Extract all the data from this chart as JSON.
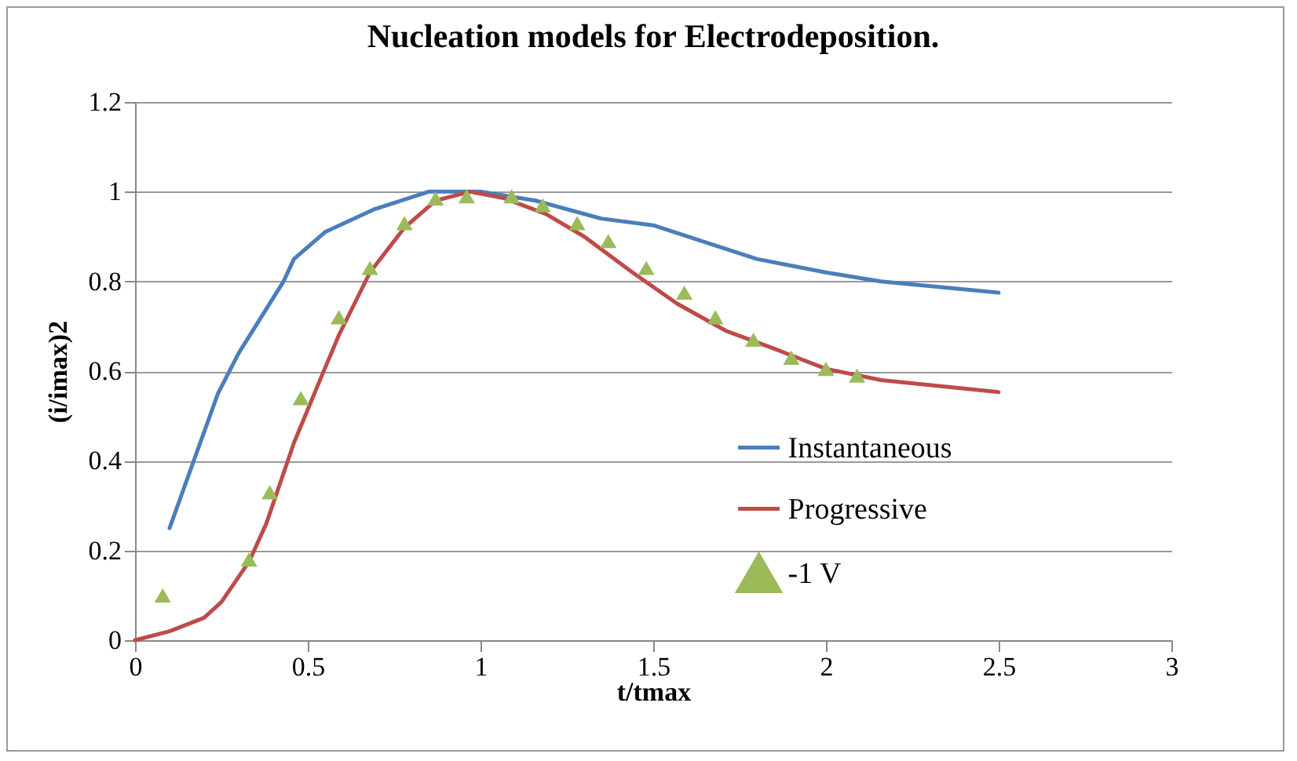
{
  "chart_data": {
    "type": "line",
    "title": "Nucleation models for Electrodeposition.",
    "xlabel": "t/tmax",
    "ylabel": "(i/imax)2",
    "xlim": [
      0,
      3
    ],
    "xticks": [
      0,
      0.5,
      1,
      1.5,
      2,
      2.5,
      3
    ],
    "ylim": [
      0,
      1.2
    ],
    "yticks": [
      0,
      0.2,
      0.4,
      0.6,
      0.8,
      1,
      1.2
    ],
    "grid": "y",
    "legend": "bottom right",
    "series": [
      {
        "name": "Instantaneous",
        "color": "#4a7ebb",
        "marker": "none",
        "x": [
          0.1,
          0.24,
          0.3,
          0.43,
          0.46,
          0.55,
          0.69,
          0.85,
          1.0,
          1.16,
          1.35,
          1.5,
          1.8,
          2.0,
          2.16,
          2.5
        ],
        "values": [
          0.25,
          0.55,
          0.64,
          0.8,
          0.85,
          0.91,
          0.96,
          1.0,
          1.0,
          0.98,
          0.94,
          0.925,
          0.85,
          0.82,
          0.8,
          0.775
        ]
      },
      {
        "name": "Progressive",
        "color": "#be4b48",
        "marker": "none",
        "x": [
          0,
          0.1,
          0.2,
          0.25,
          0.33,
          0.38,
          0.46,
          0.53,
          0.59,
          0.68,
          0.78,
          0.87,
          0.97,
          1.07,
          1.19,
          1.3,
          1.44,
          1.57,
          1.71,
          1.85,
          2.0,
          2.16,
          2.5
        ],
        "values": [
          0,
          0.02,
          0.05,
          0.085,
          0.175,
          0.26,
          0.44,
          0.57,
          0.68,
          0.82,
          0.92,
          0.98,
          1.0,
          0.985,
          0.95,
          0.9,
          0.82,
          0.75,
          0.69,
          0.65,
          0.605,
          0.58,
          0.553
        ]
      },
      {
        "name": "-1 V",
        "type": "scatter",
        "color": "#9bbb59",
        "marker": "triangle",
        "x": [
          0.08,
          0.33,
          0.39,
          0.48,
          0.59,
          0.68,
          0.78,
          0.87,
          0.96,
          1.09,
          1.18,
          1.28,
          1.37,
          1.48,
          1.59,
          1.68,
          1.79,
          1.9,
          2.0,
          2.09
        ],
        "values": [
          0.1,
          0.18,
          0.33,
          0.54,
          0.72,
          0.83,
          0.93,
          0.985,
          0.99,
          0.99,
          0.97,
          0.93,
          0.89,
          0.83,
          0.775,
          0.72,
          0.67,
          0.63,
          0.605,
          0.59
        ]
      }
    ]
  }
}
